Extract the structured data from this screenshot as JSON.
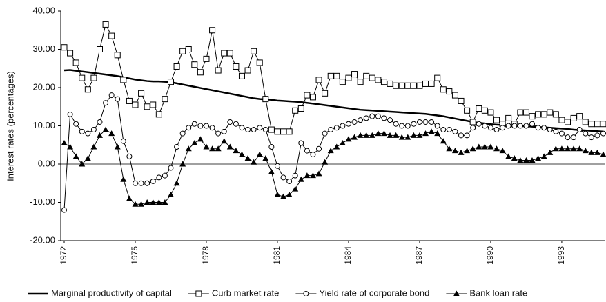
{
  "chart_data": {
    "type": "line",
    "y_label": "Interest rates (percentages)",
    "categories": [
      "1972",
      null,
      null,
      null,
      null,
      null,
      null,
      null,
      null,
      null,
      null,
      null,
      "1975",
      null,
      null,
      null,
      null,
      null,
      null,
      null,
      null,
      null,
      null,
      null,
      "1978",
      null,
      null,
      null,
      null,
      null,
      null,
      null,
      null,
      null,
      null,
      null,
      "1981",
      null,
      null,
      null,
      null,
      null,
      null,
      null,
      null,
      null,
      null,
      null,
      "1984",
      null,
      null,
      null,
      null,
      null,
      null,
      null,
      null,
      null,
      null,
      null,
      "1987",
      null,
      null,
      null,
      null,
      null,
      null,
      null,
      null,
      null,
      null,
      null,
      "1990",
      null,
      null,
      null,
      null,
      null,
      null,
      null,
      null,
      null,
      null,
      null,
      "1993",
      null,
      null,
      null,
      null,
      null,
      null,
      null
    ],
    "ylim": [
      -20,
      40
    ],
    "yticks": [
      {
        "value": -20,
        "label": "-20.00"
      },
      {
        "value": -10,
        "label": "-10.00"
      },
      {
        "value": 0,
        "label": "0.00"
      },
      {
        "value": 10,
        "label": "10.00"
      },
      {
        "value": 20,
        "label": "20.00"
      },
      {
        "value": 30,
        "label": "30.00"
      },
      {
        "value": 40,
        "label": "40.00"
      }
    ],
    "legend": "bottom",
    "series": [
      {
        "name": "Marginal productivity of capital",
        "color": "#000000",
        "marker": "none",
        "values": [
          24.5,
          24.6,
          24.4,
          24.2,
          24.0,
          23.8,
          23.6,
          23.4,
          23.2,
          23.0,
          22.7,
          22.4,
          22.1,
          21.9,
          21.7,
          21.6,
          21.6,
          21.5,
          21.4,
          21.1,
          20.8,
          20.5,
          20.2,
          19.9,
          19.6,
          19.3,
          19.0,
          18.7,
          18.4,
          18.1,
          17.8,
          17.5,
          17.2,
          17.0,
          16.9,
          16.8,
          16.6,
          16.5,
          16.4,
          16.3,
          16.2,
          16.0,
          15.8,
          15.6,
          15.4,
          15.2,
          15.0,
          14.8,
          14.6,
          14.4,
          14.2,
          14.1,
          14.0,
          13.9,
          13.8,
          13.7,
          13.6,
          13.5,
          13.4,
          13.3,
          13.2,
          13.1,
          12.9,
          12.7,
          12.5,
          12.2,
          11.9,
          11.6,
          11.3,
          11.0,
          10.8,
          10.6,
          10.4,
          10.3,
          10.2,
          10.1,
          10.0,
          9.9,
          9.9,
          9.8,
          9.7,
          9.6,
          9.5,
          9.4,
          9.3,
          9.2,
          9.0,
          8.9,
          8.8,
          8.7,
          8.6,
          8.5
        ]
      },
      {
        "name": "Curb market rate",
        "color": "#000000",
        "marker": "square",
        "values": [
          30.5,
          29,
          26.5,
          22.5,
          19.5,
          22.5,
          30,
          36.5,
          33.5,
          28.5,
          22,
          16.5,
          15.5,
          18.5,
          15,
          15.5,
          13,
          17,
          21.5,
          25.5,
          29.5,
          30,
          26,
          24,
          27.5,
          35,
          24.5,
          29,
          29,
          25.5,
          23,
          24.5,
          29.5,
          26.5,
          17,
          9,
          8.5,
          8.5,
          8.5,
          14,
          14.5,
          18,
          17.5,
          22,
          18.5,
          23,
          23,
          21.5,
          22.5,
          23.5,
          21.5,
          23,
          22.5,
          22,
          21.5,
          21,
          20.5,
          20.5,
          20.5,
          20.5,
          20.5,
          21,
          21,
          22.5,
          19.5,
          19,
          18,
          16.5,
          14,
          11,
          14.5,
          14,
          13.5,
          11.5,
          10.5,
          12,
          10.5,
          13.5,
          13.5,
          12.5,
          13,
          13,
          13.5,
          13,
          11.5,
          11,
          12,
          12.5,
          11,
          10.5,
          10.5,
          10.5
        ]
      },
      {
        "name": "Yield rate of corporate bond",
        "color": "#000000",
        "marker": "circle",
        "values": [
          -12,
          13,
          10.5,
          8.5,
          8,
          9,
          11,
          16,
          18,
          17,
          6,
          2,
          -5,
          -5,
          -5,
          -4.5,
          -3.5,
          -3,
          -1,
          4.5,
          8,
          9.5,
          10.5,
          10,
          10,
          9.5,
          8,
          8.5,
          11,
          10.5,
          9.5,
          9,
          9,
          9.5,
          9,
          4.5,
          -0.5,
          -3.5,
          -4.5,
          -3,
          5.5,
          3.5,
          2.5,
          4,
          8,
          9,
          9.5,
          10,
          10.5,
          11,
          11.5,
          12,
          12.5,
          12.5,
          12,
          11.5,
          10.5,
          10,
          10,
          10.5,
          11,
          11,
          11,
          10,
          9,
          9,
          8.5,
          7.5,
          7.5,
          9.5,
          10.5,
          10,
          9.5,
          9,
          9.5,
          10,
          10,
          10,
          10,
          10.5,
          9.5,
          9.5,
          9,
          8.5,
          8,
          7,
          7,
          9,
          8,
          7,
          7.5,
          8
        ]
      },
      {
        "name": "Bank loan rate",
        "color": "#000000",
        "marker": "triangle",
        "values": [
          5.5,
          4.5,
          2,
          0,
          1.5,
          4.5,
          7.5,
          9,
          8,
          4.5,
          -4,
          -9,
          -10.5,
          -10.5,
          -10,
          -10,
          -10,
          -10,
          -8,
          -5,
          0,
          4,
          5.5,
          6.5,
          4.5,
          4,
          4,
          6,
          4.5,
          3.5,
          2.5,
          1.5,
          0.5,
          2.5,
          1.5,
          -2,
          -8,
          -8.5,
          -8,
          -6.5,
          -4,
          -3,
          -3,
          -2.5,
          0.5,
          3.5,
          4.5,
          5.5,
          6.5,
          7,
          7.5,
          7.5,
          7.5,
          8,
          8,
          7.5,
          7.5,
          7,
          7,
          7.5,
          7.5,
          8,
          8.5,
          8,
          6,
          4,
          3.5,
          3,
          3.5,
          4,
          4.5,
          4.5,
          4.5,
          4,
          3.5,
          2,
          1.5,
          1,
          1,
          1,
          1.5,
          2,
          3,
          4,
          4,
          4,
          4,
          4,
          3.5,
          3,
          3,
          2.5
        ]
      }
    ]
  }
}
